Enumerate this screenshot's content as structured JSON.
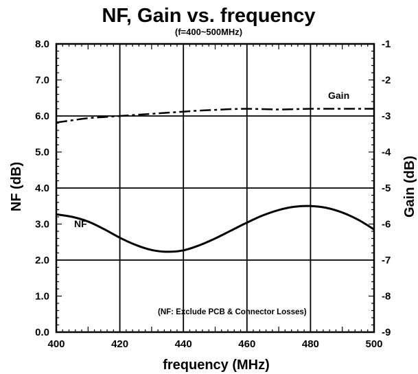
{
  "chart_data": {
    "type": "line",
    "title": "NF, Gain vs. frequency",
    "subtitle": "(f=400~500MHz)",
    "xlabel": "frequency (MHz)",
    "ylabel_left": "NF (dB)",
    "ylabel_right": "Gain (dB)",
    "xlim": [
      400,
      500
    ],
    "ylim_left": [
      0.0,
      8.0
    ],
    "ylim_right": [
      -9,
      -1
    ],
    "grid": true,
    "x_ticks": [
      "400",
      "420",
      "440",
      "460",
      "480",
      "500"
    ],
    "y_left_ticks": [
      "0.0",
      "1.0",
      "2.0",
      "3.0",
      "4.0",
      "5.0",
      "6.0",
      "7.0",
      "8.0"
    ],
    "y_right_ticks": [
      "-9",
      "-8",
      "-7",
      "-6",
      "-5",
      "-4",
      "-3",
      "-2",
      "-1"
    ],
    "annotations": {
      "gain_label": "Gain",
      "nf_label": "NF",
      "note": "(NF: Exclude PCB & Connector Losses)"
    },
    "series": [
      {
        "name": "NF",
        "axis": "left",
        "style": "solid",
        "x": [
          400,
          405,
          410,
          415,
          420,
          425,
          430,
          435,
          440,
          445,
          450,
          455,
          460,
          465,
          470,
          475,
          480,
          485,
          490,
          495,
          500
        ],
        "y": [
          3.27,
          3.2,
          3.07,
          2.86,
          2.62,
          2.42,
          2.28,
          2.23,
          2.27,
          2.41,
          2.6,
          2.82,
          3.04,
          3.24,
          3.39,
          3.48,
          3.5,
          3.45,
          3.32,
          3.12,
          2.85
        ]
      },
      {
        "name": "Gain",
        "axis": "right",
        "style": "dash-dot",
        "x": [
          400,
          405,
          410,
          415,
          420,
          425,
          430,
          435,
          440,
          445,
          450,
          455,
          460,
          465,
          470,
          475,
          480,
          485,
          490,
          495,
          500
        ],
        "y": [
          -3.18,
          -3.12,
          -3.06,
          -3.03,
          -3.0,
          -2.97,
          -2.94,
          -2.91,
          -2.88,
          -2.85,
          -2.83,
          -2.81,
          -2.8,
          -2.81,
          -2.82,
          -2.81,
          -2.8,
          -2.8,
          -2.8,
          -2.8,
          -2.8
        ]
      }
    ]
  }
}
